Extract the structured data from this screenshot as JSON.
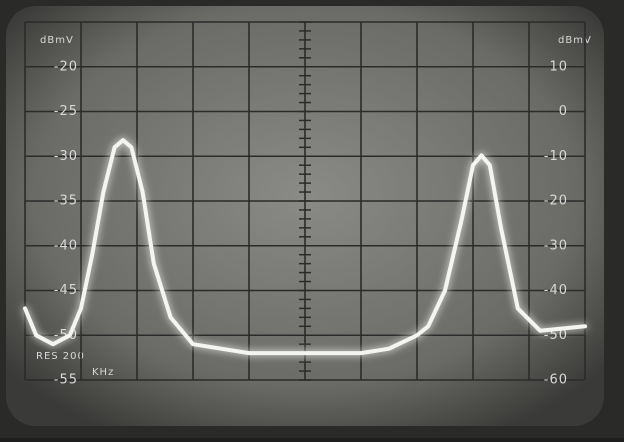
{
  "chart_data": {
    "type": "line",
    "y_label": "dBmV",
    "y2_label": "dBmV",
    "annotations": [
      "RES 200",
      "KHz"
    ],
    "xlim": [
      0,
      10
    ],
    "xticks": [
      0,
      1,
      2,
      3,
      4,
      5,
      6,
      7,
      8,
      9,
      10
    ],
    "ylim": [
      -55,
      -15
    ],
    "yticks": [
      -20,
      -25,
      -30,
      -35,
      -40,
      -45,
      -50,
      -55
    ],
    "y2lim": [
      -60,
      20
    ],
    "y2ticks": [
      10,
      0,
      -10,
      -20,
      -30,
      -40,
      -50,
      -60
    ],
    "grid": true,
    "x": [
      0,
      0.2,
      0.5,
      0.8,
      1.0,
      1.2,
      1.4,
      1.6,
      1.75,
      1.9,
      2.1,
      2.3,
      2.6,
      3,
      4,
      5,
      6,
      6.5,
      7,
      7.2,
      7.5,
      7.8,
      8.0,
      8.15,
      8.3,
      8.5,
      8.8,
      9.2,
      10
    ],
    "series": [
      {
        "color": "#f4f4f0",
        "values": [
          -47,
          -50,
          -51,
          -50,
          -47,
          -41,
          -34,
          -29,
          -28.2,
          -29,
          -34,
          -42,
          -48,
          -51,
          -52,
          -52,
          -52,
          -51.5,
          -50,
          -49,
          -45,
          -37,
          -31,
          -29.9,
          -31,
          -38,
          -47,
          -49.5,
          -49
        ]
      }
    ]
  }
}
